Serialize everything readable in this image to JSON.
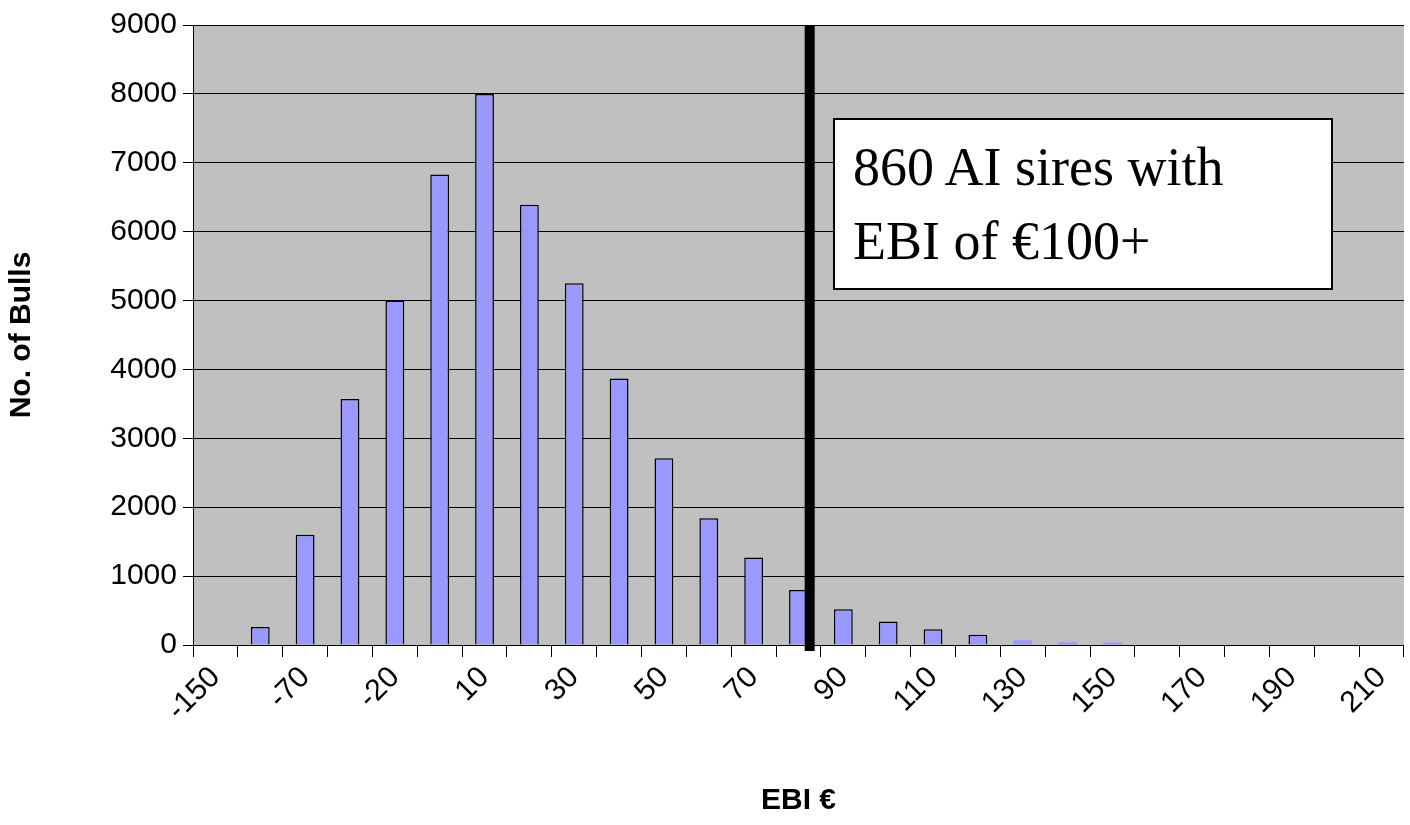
{
  "chart_data": {
    "type": "bar",
    "xlabel": "EBI €",
    "ylabel": "No. of Bulls",
    "categories": [
      "-150",
      null,
      "-70",
      null,
      "-20",
      null,
      "10",
      null,
      "30",
      null,
      "50",
      null,
      "70",
      null,
      "90",
      null,
      "110",
      null,
      "130",
      null,
      "150",
      null,
      "170",
      null,
      "190",
      null,
      "210"
    ],
    "values": [
      0,
      260,
      1600,
      3570,
      5000,
      6830,
      8000,
      6390,
      5250,
      3870,
      2710,
      1840,
      1270,
      800,
      520,
      340,
      230,
      150,
      70,
      40,
      40,
      0,
      0,
      0,
      0,
      0,
      0
    ],
    "color": "#9999ff",
    "ylim": [
      0,
      9000
    ],
    "yticks": [
      0,
      1000,
      2000,
      3000,
      4000,
      5000,
      6000,
      7000,
      8000,
      9000
    ],
    "grid": "y",
    "legend": false,
    "ref_lines": [
      {
        "axis": "x",
        "value": "90",
        "color": "#000000"
      }
    ],
    "annotations": [
      "860 AI sires with EBI of €100+"
    ]
  }
}
